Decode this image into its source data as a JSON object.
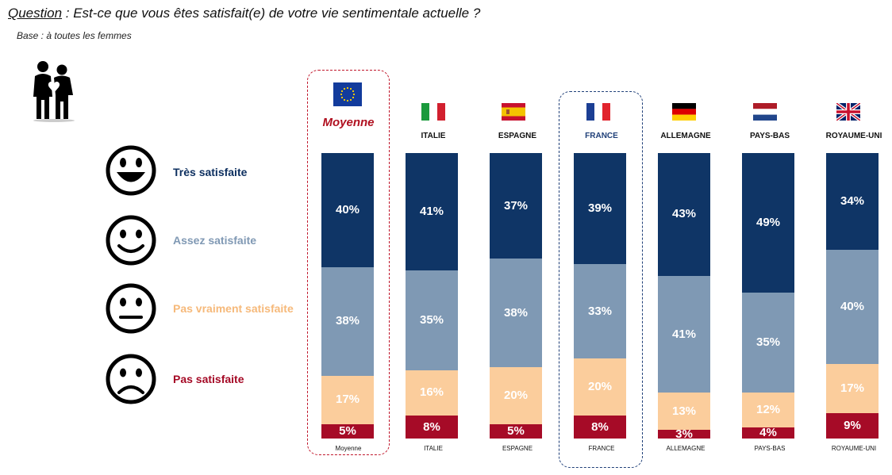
{
  "header": {
    "question_word": "Question",
    "question_text": " : Est-ce que vous êtes satisfait(e) de votre vie sentimentale actuelle ?",
    "base": "Base :  à toutes les femmes"
  },
  "legend": [
    {
      "label": "Très satisfaite",
      "face": "very-happy",
      "color": "#0e3060"
    },
    {
      "label": "Assez satisfaite",
      "face": "happy",
      "color": "#8099b4"
    },
    {
      "label": "Pas vraiment satisfaite",
      "face": "neutral",
      "color": "#f6b97a"
    },
    {
      "label": "Pas satisfaite",
      "face": "sad",
      "color": "#a50a26"
    }
  ],
  "colors": {
    "tres": "#0f3566",
    "assez": "#7f99b4",
    "pas_vraiment": "#fbcd9c",
    "pas": "#a60b27",
    "highlight_red": "#c0162b",
    "highlight_blue": "#1f3f78"
  },
  "chart_data": {
    "type": "bar",
    "stacked": true,
    "categories": [
      "Moyenne",
      "ITALIE",
      "ESPAGNE",
      "FRANCE",
      "ALLEMAGNE",
      "PAYS-BAS",
      "ROYAUME-UNI"
    ],
    "top_labels": [
      "Moyenne",
      "ITALIE",
      "ESPAGNE",
      "FRANCE",
      "ALLEMAGNE",
      "PAYS-BAS",
      "ROYAUME-UNI"
    ],
    "flags": [
      "eu-flag-icon",
      "italy-flag-icon",
      "spain-flag-icon",
      "france-flag-icon",
      "germany-flag-icon",
      "netherlands-flag-icon",
      "uk-flag-icon"
    ],
    "series": [
      {
        "name": "Très satisfaite",
        "values": [
          40,
          41,
          37,
          39,
          43,
          49,
          34
        ],
        "labels": [
          "40%",
          "41%",
          "37%",
          "39%",
          "43%",
          "49%",
          "34%"
        ]
      },
      {
        "name": "Assez satisfaite",
        "values": [
          38,
          35,
          38,
          33,
          41,
          35,
          40
        ],
        "labels": [
          "38%",
          "35%",
          "38%",
          "33%",
          "41%",
          "35%",
          "40%"
        ]
      },
      {
        "name": "Pas vraiment satisfaite",
        "values": [
          17,
          16,
          20,
          20,
          13,
          12,
          17
        ],
        "labels": [
          "17%",
          "16%",
          "20%",
          "20%",
          "13%",
          "12%",
          "17%"
        ]
      },
      {
        "name": "Pas satisfaite",
        "values": [
          5,
          8,
          5,
          8,
          3,
          4,
          9
        ],
        "labels": [
          "5%",
          "8%",
          "5%",
          "8%",
          "3%",
          "4%",
          "9%"
        ]
      }
    ],
    "highlighted": [
      "Moyenne",
      "FRANCE"
    ]
  }
}
